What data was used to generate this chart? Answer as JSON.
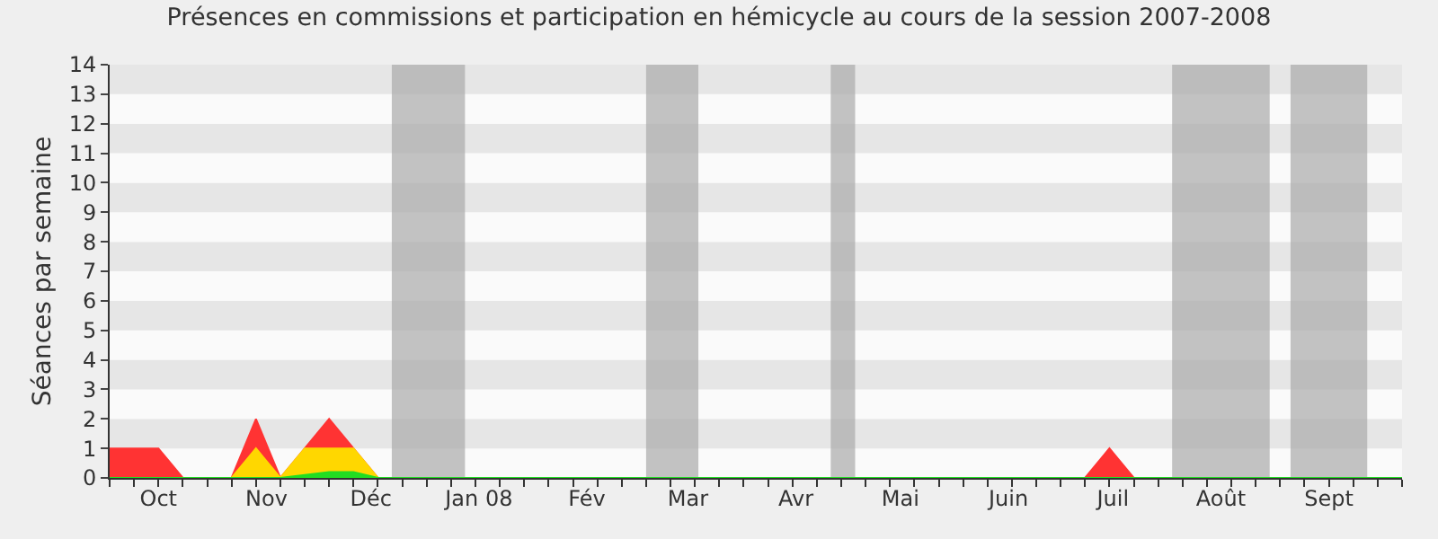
{
  "chart_data": {
    "type": "area",
    "title": "Présences en commissions et participation en hémicycle au cours de la session 2007-2008",
    "ylabel": "Séances par semaine",
    "x": [
      "2007-10-01",
      "2007-10-08",
      "2007-10-15",
      "2007-10-22",
      "2007-10-29",
      "2007-11-05",
      "2007-11-12",
      "2007-11-19",
      "2007-11-26",
      "2007-12-03",
      "2007-12-10",
      "2007-12-17",
      "2007-12-24",
      "2007-12-31",
      "2008-01-07",
      "2008-01-14",
      "2008-01-21",
      "2008-01-28",
      "2008-02-04",
      "2008-02-11",
      "2008-02-18",
      "2008-02-25",
      "2008-03-03",
      "2008-03-10",
      "2008-03-17",
      "2008-03-24",
      "2008-03-31",
      "2008-04-07",
      "2008-04-14",
      "2008-04-21",
      "2008-04-28",
      "2008-05-05",
      "2008-05-12",
      "2008-05-19",
      "2008-05-26",
      "2008-06-02",
      "2008-06-09",
      "2008-06-16",
      "2008-06-23",
      "2008-06-30",
      "2008-07-07",
      "2008-07-14",
      "2008-07-21",
      "2008-07-28",
      "2008-08-04",
      "2008-08-11",
      "2008-08-18",
      "2008-08-25",
      "2008-09-01",
      "2008-09-08",
      "2008-09-15",
      "2008-09-22",
      "2008-09-29",
      "2008-10-06"
    ],
    "series": [
      {
        "color": "#ff3333",
        "values": [
          1,
          1,
          1,
          0,
          0,
          0,
          2,
          0,
          1,
          2,
          1,
          0,
          0,
          0,
          0,
          0,
          0,
          0,
          0,
          0,
          0,
          0,
          0,
          0,
          0,
          0,
          0,
          0,
          0,
          0,
          0,
          0,
          0,
          0,
          0,
          0,
          0,
          0,
          0,
          0,
          0,
          1,
          0,
          0,
          0,
          0,
          0,
          0,
          0,
          0,
          0,
          0,
          0,
          0
        ]
      },
      {
        "color": "#ffd700",
        "values": [
          0,
          0,
          0,
          0,
          0,
          0,
          1,
          0,
          1,
          1,
          1,
          0,
          0,
          0,
          0,
          0,
          0,
          0,
          0,
          0,
          0,
          0,
          0,
          0,
          0,
          0,
          0,
          0,
          0,
          0,
          0,
          0,
          0,
          0,
          0,
          0,
          0,
          0,
          0,
          0,
          0,
          0,
          0,
          0,
          0,
          0,
          0,
          0,
          0,
          0,
          0,
          0,
          0,
          0
        ]
      },
      {
        "color": "#22dd22",
        "values": [
          0,
          0,
          0,
          0,
          0,
          0,
          0,
          0,
          0.1,
          0.2,
          0.2,
          0,
          0,
          0,
          0,
          0,
          0,
          0,
          0,
          0,
          0,
          0,
          0,
          0,
          0,
          0,
          0,
          0,
          0,
          0,
          0,
          0,
          0,
          0,
          0,
          0,
          0,
          0,
          0,
          0,
          0,
          0,
          0,
          0,
          0,
          0,
          0,
          0,
          0,
          0,
          0,
          0,
          0,
          0
        ]
      }
    ],
    "xlim": [
      "2007-10-01",
      "2008-10-06"
    ],
    "xticks": [
      {
        "value": "2007-10-15",
        "label": "Oct"
      },
      {
        "value": "2007-11-15",
        "label": "Nov"
      },
      {
        "value": "2007-12-15",
        "label": "Déc"
      },
      {
        "value": "2008-01-15",
        "label": "Jan 08"
      },
      {
        "value": "2008-02-15",
        "label": "Fév"
      },
      {
        "value": "2008-03-15",
        "label": "Mar"
      },
      {
        "value": "2008-04-15",
        "label": "Avr"
      },
      {
        "value": "2008-05-15",
        "label": "Mai"
      },
      {
        "value": "2008-06-15",
        "label": "Juin"
      },
      {
        "value": "2008-07-15",
        "label": "Juil"
      },
      {
        "value": "2008-08-15",
        "label": "Août"
      },
      {
        "value": "2008-09-15",
        "label": "Sept"
      }
    ],
    "ylim": [
      0,
      14
    ],
    "yticks": [
      0,
      1,
      2,
      3,
      4,
      5,
      6,
      7,
      8,
      9,
      10,
      11,
      12,
      13,
      14
    ],
    "bands": [
      {
        "axis": "x",
        "from": "2007-12-21",
        "to": "2008-01-11",
        "color": "#aaaaaa"
      },
      {
        "axis": "x",
        "from": "2008-03-03",
        "to": "2008-03-18",
        "color": "#aaaaaa"
      },
      {
        "axis": "x",
        "from": "2008-04-25",
        "to": "2008-05-02",
        "color": "#aaaaaa"
      },
      {
        "axis": "x",
        "from": "2008-08-01",
        "to": "2008-08-29",
        "color": "#aaaaaa"
      },
      {
        "axis": "x",
        "from": "2008-09-04",
        "to": "2008-09-26",
        "color": "#aaaaaa"
      }
    ]
  }
}
